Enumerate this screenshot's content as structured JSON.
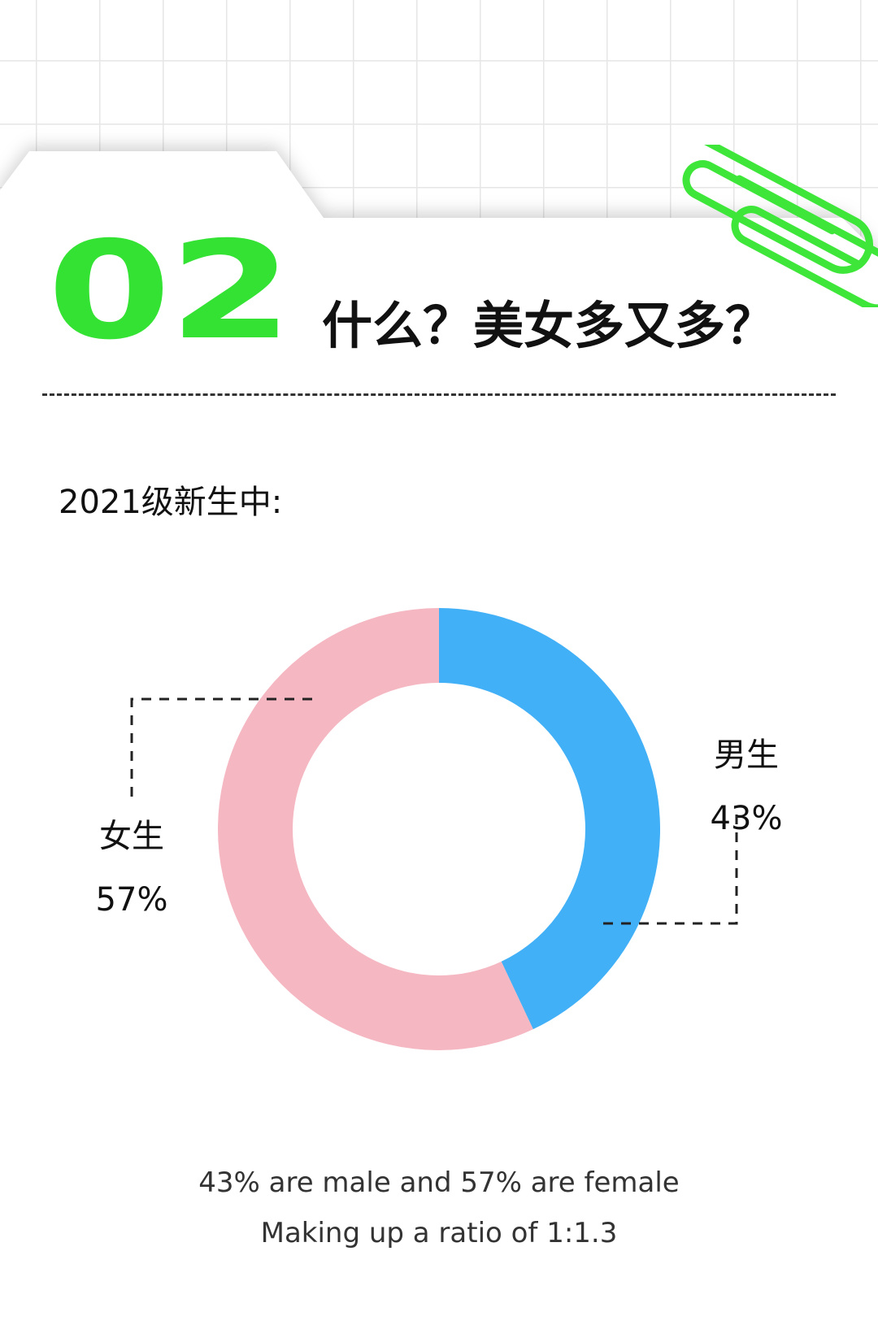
{
  "header": {
    "number": "02",
    "title": "什么？美女多又多？"
  },
  "subtitle": "2021级新生中:",
  "chart_data": {
    "type": "pie",
    "style": "donut",
    "title": "",
    "slices": [
      {
        "label": "男生",
        "value": 43,
        "value_label": "43%",
        "color": "#42b0f7"
      },
      {
        "label": "女生",
        "value": 57,
        "value_label": "57%",
        "color": "#f5b7c1"
      }
    ]
  },
  "footer": {
    "line1": "43% are male and 57% are female",
    "line2": "Making up a ratio of 1:1.3"
  },
  "colors": {
    "accent_green": "#34e234",
    "text_dark": "#111111"
  },
  "icons": [
    "paperclip-icon"
  ]
}
